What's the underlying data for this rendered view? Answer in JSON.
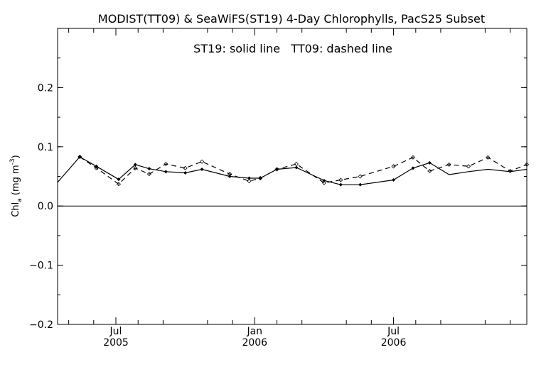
{
  "chart_data": {
    "type": "line",
    "title": "MODIST(TT09) & SeaWiFS(ST19) 4-Day Chlorophylls, PacS25 Subset",
    "annotation": "ST19: solid line   TT09: dashed line",
    "ylabel_main": "Chl",
    "ylabel_sub": "a",
    "ylabel_units": " (mg m",
    "ylabel_exp": "-3",
    "ylabel_close": ")",
    "ylim": [
      -0.2,
      0.3
    ],
    "xlim": [
      2004.79,
      2006.48
    ],
    "yticks": [
      {
        "value": -0.2,
        "label": "−0.2"
      },
      {
        "value": -0.1,
        "label": "−0.1"
      },
      {
        "value": 0.0,
        "label": "0.0"
      },
      {
        "value": 0.1,
        "label": "0.1"
      },
      {
        "value": 0.2,
        "label": "0.2"
      }
    ],
    "xticks_major": [
      {
        "value": 2005.0,
        "month": "Jul",
        "year": "2005"
      },
      {
        "value": 2005.5,
        "month": "Jan",
        "year": "2006"
      },
      {
        "value": 2006.0,
        "month": "Jul",
        "year": "2006"
      }
    ],
    "xticks_minor": [
      2004.83,
      2004.92,
      2005.08,
      2005.17,
      2005.33,
      2005.42,
      2005.58,
      2005.67,
      2005.83,
      2005.92,
      2006.08,
      2006.17,
      2006.33,
      2006.42
    ],
    "zero_line": 0.0,
    "series": [
      {
        "name": "ST19",
        "style": "solid",
        "color": "#000000",
        "x": [
          2004.79,
          2004.87,
          2004.93,
          2005.01,
          2005.07,
          2005.12,
          2005.18,
          2005.25,
          2005.31,
          2005.41,
          2005.48,
          2005.52,
          2005.58,
          2005.65,
          2005.75,
          2005.81,
          2005.88,
          2006.0,
          2006.07,
          2006.13,
          2006.2,
          2006.27,
          2006.34,
          2006.42,
          2006.48
        ],
        "y": [
          0.04,
          0.083,
          0.067,
          0.045,
          0.07,
          0.063,
          0.058,
          0.056,
          0.062,
          0.05,
          0.047,
          0.047,
          0.062,
          0.065,
          0.043,
          0.036,
          0.036,
          0.044,
          0.064,
          0.073,
          0.053,
          0.058,
          0.062,
          0.058,
          0.062
        ],
        "markers": false
      },
      {
        "name": "ST19-markers",
        "style": "points",
        "x": [
          2004.87,
          2004.93,
          2005.01,
          2005.07,
          2005.12,
          2005.18,
          2005.25,
          2005.31,
          2005.41,
          2005.48,
          2005.52,
          2005.58,
          2005.65,
          2005.75,
          2005.81,
          2005.88,
          2006.0,
          2006.07,
          2006.13
        ],
        "y": [
          0.083,
          0.067,
          0.045,
          0.07,
          0.063,
          0.058,
          0.056,
          0.062,
          0.05,
          0.047,
          0.047,
          0.062,
          0.065,
          0.043,
          0.036,
          0.036,
          0.044,
          0.064,
          0.073
        ]
      },
      {
        "name": "TT09",
        "style": "dashed",
        "color": "#000000",
        "x": [
          2004.87,
          2004.93,
          2005.01,
          2005.07,
          2005.12,
          2005.18,
          2005.25,
          2005.31,
          2005.41,
          2005.48,
          2005.52,
          2005.58,
          2005.65,
          2005.75,
          2005.81,
          2005.88,
          2006.0,
          2006.07,
          2006.13,
          2006.2,
          2006.27,
          2006.34,
          2006.42,
          2006.48
        ],
        "y": [
          0.083,
          0.064,
          0.037,
          0.064,
          0.054,
          0.071,
          0.064,
          0.075,
          0.054,
          0.042,
          0.047,
          0.062,
          0.071,
          0.039,
          0.044,
          0.05,
          0.067,
          0.082,
          0.059,
          0.07,
          0.067,
          0.082,
          0.059,
          0.07
        ]
      }
    ]
  }
}
